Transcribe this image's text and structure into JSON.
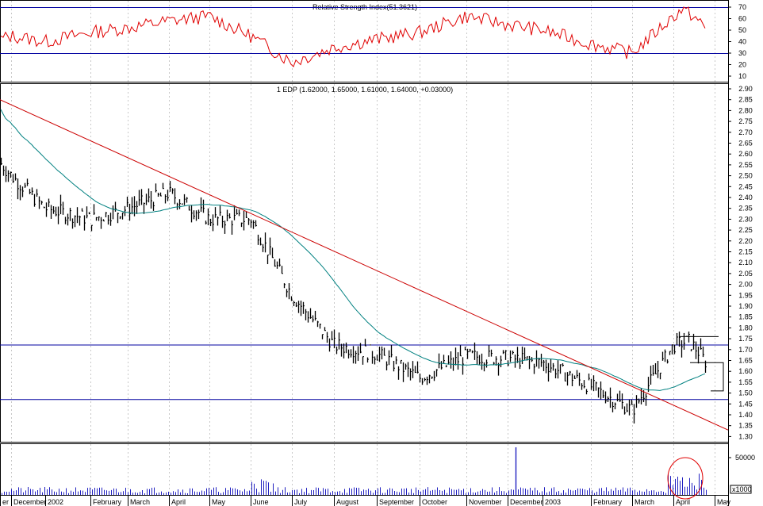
{
  "rsi_panel": {
    "title": "Relative Strength Index(51.3621)",
    "y_range": [
      10,
      70
    ],
    "ticks": [
      "70",
      "60",
      "50",
      "40",
      "30",
      "20",
      "10"
    ],
    "reference_lines": [
      70,
      30
    ],
    "line_color": "#e00000"
  },
  "price_panel": {
    "title": "1 EDP (1.62000, 1.65000, 1.61000, 1.64000, +0.03000)",
    "y_range": [
      1.25,
      2.9
    ],
    "ticks": [
      "2.90",
      "2.85",
      "2.80",
      "2.75",
      "2.70",
      "2.65",
      "2.60",
      "2.55",
      "2.50",
      "2.45",
      "2.40",
      "2.35",
      "2.30",
      "2.25",
      "2.20",
      "2.15",
      "2.10",
      "2.05",
      "2.00",
      "1.95",
      "1.90",
      "1.85",
      "1.80",
      "1.75",
      "1.70",
      "1.65",
      "1.60",
      "1.55",
      "1.50",
      "1.45",
      "1.40",
      "1.35",
      "1.30"
    ],
    "horizontal_lines": [
      1.723,
      1.472
    ],
    "trendline_color": "#cc0000",
    "moving_average_color": "#008080",
    "bar_color": "#000000"
  },
  "volume_panel": {
    "tick": "50000",
    "unit": "x1000",
    "bar_color": "#2020c0",
    "highlight_color": "#e00000"
  },
  "x_axis": {
    "labels": [
      "er",
      "December",
      "2002",
      "February",
      "March",
      "April",
      "May",
      "June",
      "July",
      "August",
      "September",
      "October",
      "November",
      "December",
      "2003",
      "February",
      "March",
      "April",
      "May"
    ]
  },
  "grid_color": "#c8c8c8",
  "chart_data": {
    "type": "line",
    "title": "1 EDP (1.62000, 1.65000, 1.61000, 1.64000, +0.03000)",
    "x_categories": [
      "December",
      "2002",
      "February",
      "March",
      "April",
      "May",
      "June",
      "July",
      "August",
      "September",
      "October",
      "November",
      "December",
      "2003",
      "February",
      "March",
      "April"
    ],
    "series": [
      {
        "values": [
          2.5,
          2.35,
          2.3,
          2.35,
          2.42,
          2.3,
          2.3,
          1.95,
          1.72,
          1.68,
          1.57,
          1.67,
          1.66,
          1.64,
          1.53,
          1.42,
          1.72
        ]
      }
    ],
    "ylim": [
      1.3,
      2.9
    ],
    "rsi_series": {
      "name": "Relative Strength Index(51.3621)",
      "values": [
        45,
        40,
        48,
        52,
        58,
        62,
        45,
        22,
        35,
        42,
        48,
        62,
        55,
        50,
        38,
        30,
        62
      ],
      "ylim": [
        10,
        70
      ]
    }
  }
}
